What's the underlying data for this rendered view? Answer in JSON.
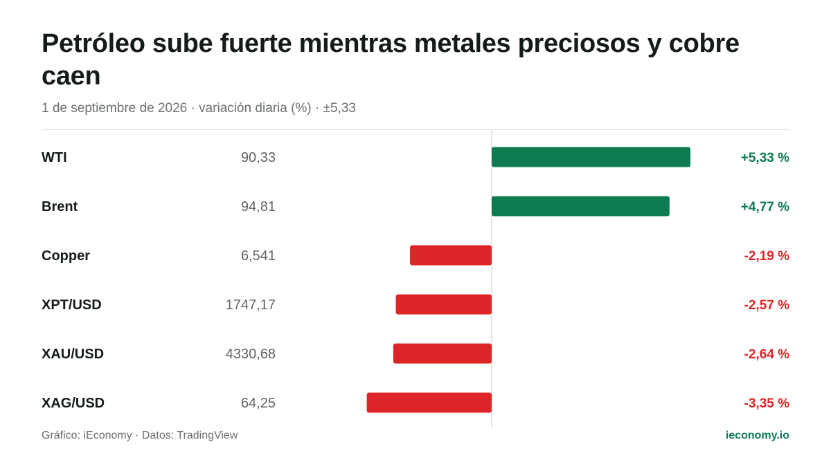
{
  "header": {
    "title": "Petróleo sube fuerte mientras metales preciosos y cobre caen",
    "subtitle": "1 de septiembre de 2026 · variación diaria (%) · ±5,33"
  },
  "footer": {
    "source": "Gráfico: iEconomy · Datos: TradingView",
    "brand": "ieconomy.io"
  },
  "colors": {
    "positive": "#0e7a4f",
    "negative": "#dd2426",
    "label": "#141b1a",
    "price": "#5f6463",
    "axis": "#d9dcdb"
  },
  "chart_data": {
    "type": "bar",
    "orientation": "horizontal",
    "categories": [
      "WTI",
      "Brent",
      "Copper",
      "XPT/USD",
      "XAU/USD",
      "XAG/USD"
    ],
    "prices": [
      "90,33",
      "94,81",
      "6,541",
      "1747,17",
      "4330,68",
      "64,25"
    ],
    "values": [
      5.33,
      4.77,
      -2.19,
      -2.57,
      -2.64,
      -3.35
    ],
    "value_labels": [
      "+5,33 %",
      "+4,77 %",
      "-2,19 %",
      "-2,57 %",
      "-2,64 %",
      "-3,35 %"
    ],
    "xlim": [
      -5.33,
      5.33
    ],
    "grid": false,
    "legend": "none"
  }
}
